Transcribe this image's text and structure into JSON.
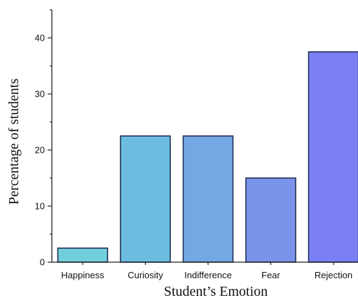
{
  "chart_data": {
    "type": "bar",
    "categories": [
      "Happiness",
      "Curiosity",
      "Indifference",
      "Fear",
      "Rejection"
    ],
    "values": [
      2.5,
      22.5,
      22.5,
      15,
      37.5
    ],
    "title": "",
    "xlabel": "Student’s Emotion",
    "ylabel": "Percentage of students",
    "ylim": [
      0,
      45
    ],
    "yticks": [
      0,
      10,
      20,
      30,
      40
    ],
    "grid": false,
    "colors": [
      "#6fd0dc",
      "#6cbde0",
      "#74a8e4",
      "#7a94ec",
      "#7a80f4"
    ]
  }
}
